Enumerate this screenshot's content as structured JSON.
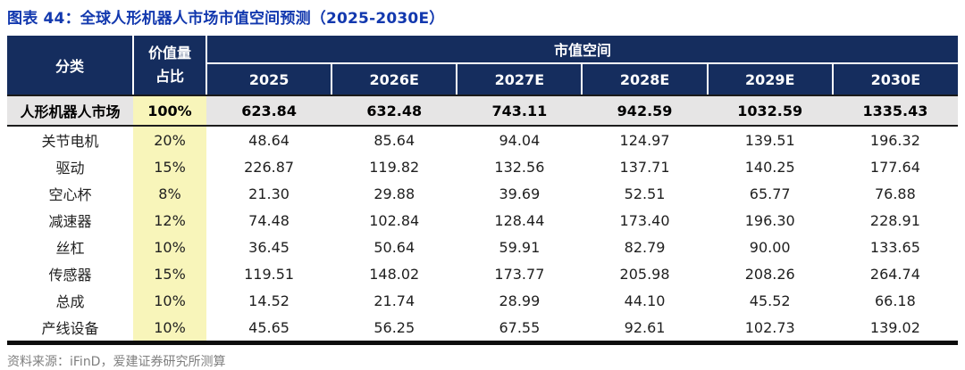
{
  "page_title": "图表 44：全球人形机器人市场市值空间预测（2025-2030E）",
  "source_note": "资料来源：iFinD，爱建证券研究所测算",
  "chart_data": {
    "type": "table",
    "figure_label": "图表 44",
    "title": "全球人形机器人市场市值空间预测（2025-2030E）",
    "header": {
      "category": "分类",
      "value_share": [
        "价值量",
        "占比"
      ],
      "group": "市值空间",
      "years": [
        "2025",
        "2026E",
        "2027E",
        "2028E",
        "2029E",
        "2030E"
      ]
    },
    "rows": [
      {
        "category": "人形机器人市场",
        "share": "100%",
        "values": [
          "623.84",
          "632.48",
          "743.11",
          "942.59",
          "1032.59",
          "1335.43"
        ],
        "emphasis": true
      },
      {
        "category": "关节电机",
        "share": "20%",
        "values": [
          "48.64",
          "85.64",
          "94.04",
          "124.97",
          "139.51",
          "196.32"
        ],
        "emphasis": false
      },
      {
        "category": "驱动",
        "share": "15%",
        "values": [
          "226.87",
          "119.82",
          "132.56",
          "137.71",
          "140.25",
          "177.64"
        ],
        "emphasis": false
      },
      {
        "category": "空心杯",
        "share": "8%",
        "values": [
          "21.30",
          "29.88",
          "39.69",
          "52.51",
          "65.77",
          "76.88"
        ],
        "emphasis": false
      },
      {
        "category": "减速器",
        "share": "12%",
        "values": [
          "74.48",
          "102.84",
          "128.44",
          "173.40",
          "196.30",
          "228.91"
        ],
        "emphasis": false
      },
      {
        "category": "丝杠",
        "share": "10%",
        "values": [
          "36.45",
          "50.64",
          "59.91",
          "82.79",
          "90.00",
          "133.65"
        ],
        "emphasis": false
      },
      {
        "category": "传感器",
        "share": "15%",
        "values": [
          "119.51",
          "148.02",
          "173.77",
          "205.98",
          "208.26",
          "264.74"
        ],
        "emphasis": false
      },
      {
        "category": "总成",
        "share": "10%",
        "values": [
          "14.52",
          "21.74",
          "28.99",
          "44.10",
          "45.52",
          "66.18"
        ],
        "emphasis": false
      },
      {
        "category": "产线设备",
        "share": "10%",
        "values": [
          "45.65",
          "56.25",
          "67.55",
          "92.61",
          "102.73",
          "139.02"
        ],
        "emphasis": false
      }
    ]
  },
  "colors": {
    "title_blue": "#1238AE",
    "header_navy": "#152D5E",
    "highlight_yellow": "#F8F5BA",
    "total_row_gray": "#E6E5E5",
    "source_gray": "#7F7F7F"
  }
}
